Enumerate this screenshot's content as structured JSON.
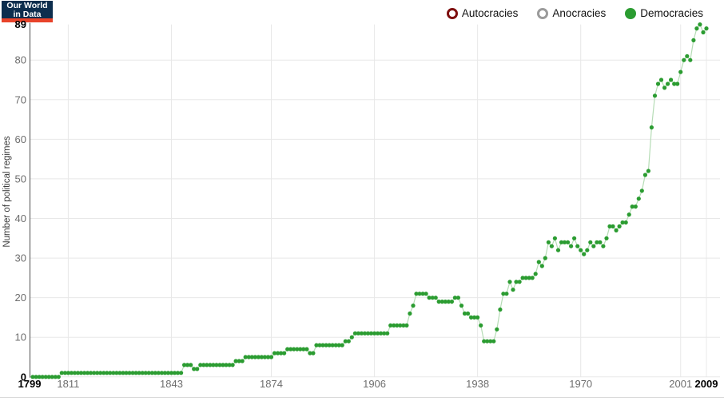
{
  "logo": {
    "line1": "Our World",
    "line2": "in Data"
  },
  "legend": {
    "items": [
      {
        "label": "Autocracies",
        "color": "#7e0e0e",
        "filled": false
      },
      {
        "label": "Anocracies",
        "color": "#9b9b9b",
        "filled": false
      },
      {
        "label": "Democracies",
        "color": "#2b9c31",
        "filled": true
      }
    ]
  },
  "chart_data": {
    "type": "scatter",
    "connected": true,
    "title": "",
    "xlabel": "",
    "ylabel": "Number of political regimes",
    "xlim": [
      1799,
      2009
    ],
    "ylim": [
      0,
      89
    ],
    "grid": true,
    "legend_position": "top-right",
    "x_ticks": [
      {
        "v": 1799,
        "bold": true
      },
      {
        "v": 1811
      },
      {
        "v": 1843
      },
      {
        "v": 1874
      },
      {
        "v": 1906
      },
      {
        "v": 1938
      },
      {
        "v": 1970
      },
      {
        "v": 2001
      },
      {
        "v": 2009,
        "bold": true
      }
    ],
    "y_ticks": [
      {
        "v": 89,
        "bold": true
      },
      {
        "v": 80
      },
      {
        "v": 70
      },
      {
        "v": 60
      },
      {
        "v": 50
      },
      {
        "v": 40
      },
      {
        "v": 30
      },
      {
        "v": 20
      },
      {
        "v": 10
      },
      {
        "v": 0,
        "bold": true
      }
    ],
    "series": [
      {
        "name": "Democracies",
        "color": "#2b9c31",
        "line_color": "#b5dcb5",
        "start_year": 1800,
        "values": [
          0,
          0,
          0,
          0,
          0,
          0,
          0,
          0,
          0,
          1,
          1,
          1,
          1,
          1,
          1,
          1,
          1,
          1,
          1,
          1,
          1,
          1,
          1,
          1,
          1,
          1,
          1,
          1,
          1,
          1,
          1,
          1,
          1,
          1,
          1,
          1,
          1,
          1,
          1,
          1,
          1,
          1,
          1,
          1,
          1,
          1,
          1,
          3,
          3,
          3,
          2,
          2,
          3,
          3,
          3,
          3,
          3,
          3,
          3,
          3,
          3,
          3,
          3,
          4,
          4,
          4,
          5,
          5,
          5,
          5,
          5,
          5,
          5,
          5,
          5,
          6,
          6,
          6,
          6,
          7,
          7,
          7,
          7,
          7,
          7,
          7,
          6,
          6,
          8,
          8,
          8,
          8,
          8,
          8,
          8,
          8,
          8,
          9,
          9,
          10,
          11,
          11,
          11,
          11,
          11,
          11,
          11,
          11,
          11,
          11,
          11,
          13,
          13,
          13,
          13,
          13,
          13,
          16,
          18,
          21,
          21,
          21,
          21,
          20,
          20,
          20,
          19,
          19,
          19,
          19,
          19,
          20,
          20,
          18,
          16,
          16,
          15,
          15,
          15,
          13,
          9,
          9,
          9,
          9,
          12,
          17,
          21,
          21,
          24,
          22,
          24,
          24,
          25,
          25,
          25,
          25,
          26,
          29,
          28,
          30,
          34,
          33,
          35,
          32,
          34,
          34,
          34,
          33,
          35,
          33,
          32,
          31,
          32,
          34,
          33,
          34,
          34,
          33,
          35,
          38,
          38,
          37,
          38,
          39,
          39,
          41,
          43,
          43,
          45,
          47,
          51,
          52,
          63,
          71,
          74,
          75,
          73,
          74,
          75,
          74,
          74,
          77,
          80,
          81,
          80,
          85,
          88,
          89,
          87,
          88
        ]
      }
    ]
  },
  "colors": {
    "grid": "#e8e8e8",
    "axis": "#4e4e4e",
    "tick": "#6e6e6e",
    "tick_bold": "#000000"
  }
}
